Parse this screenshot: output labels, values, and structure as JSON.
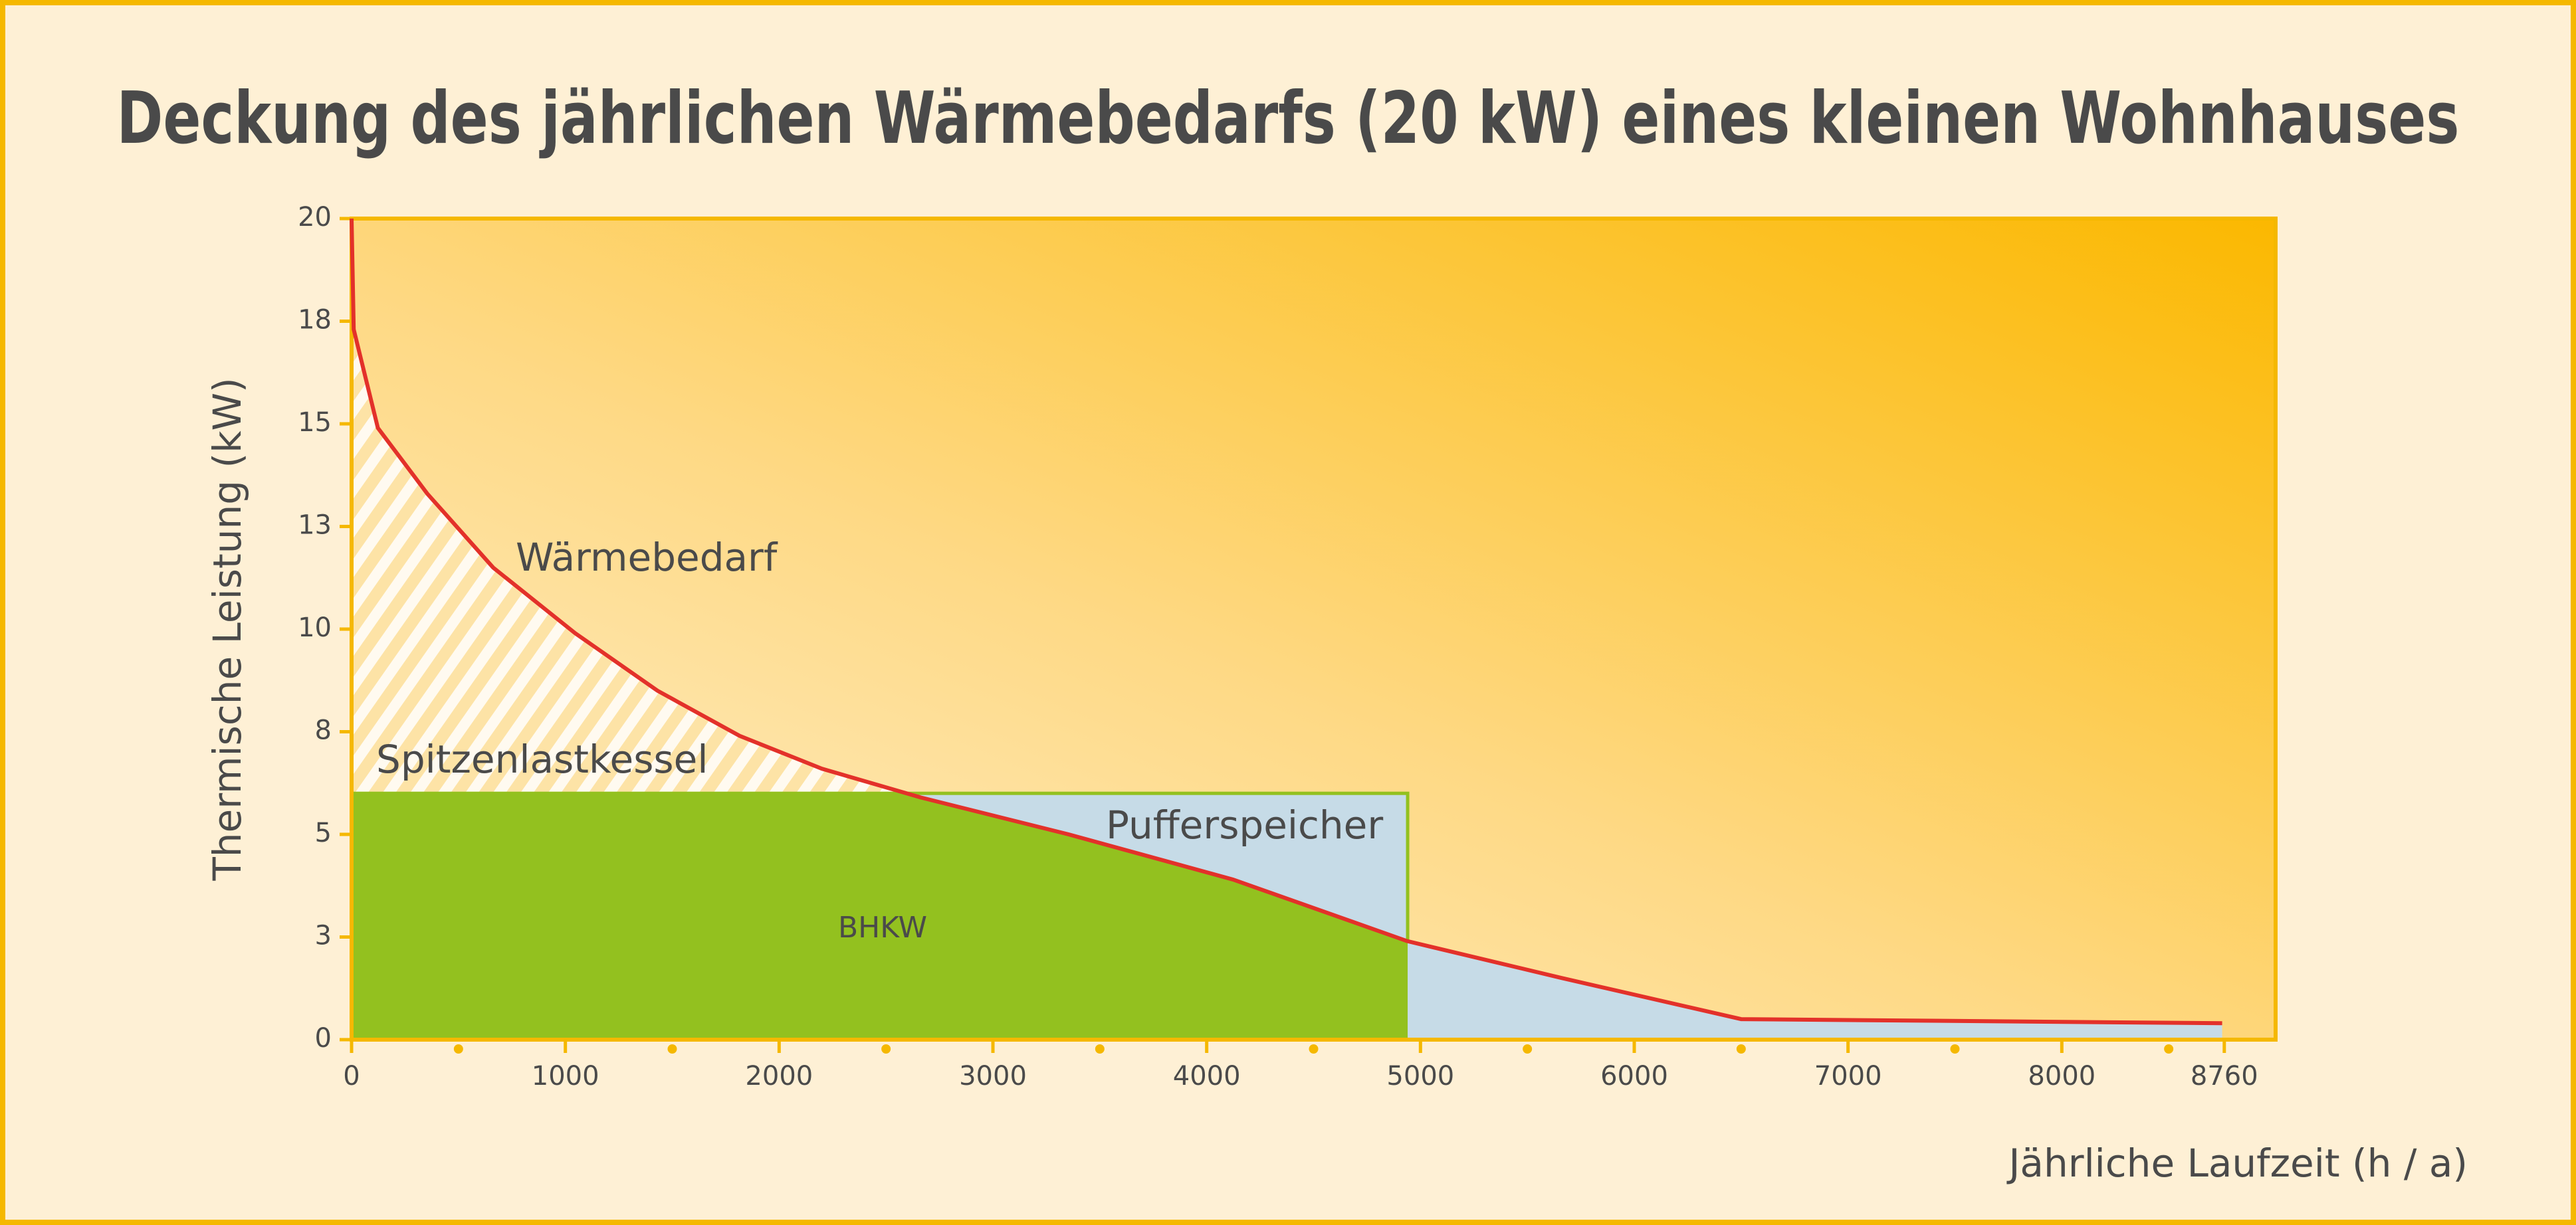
{
  "chart_data": {
    "type": "area",
    "title": "Deckung des jährlichen Wärmebedarfs (20 kW) eines kleinen Wohnhauses",
    "x_label": "Jährliche Laufzeit (h / a)",
    "y_label": "Thermische Leistung (kW)",
    "xlim": [
      0,
      9000
    ],
    "ylim": [
      0,
      20
    ],
    "xticks": [
      0,
      1000,
      2000,
      3000,
      4000,
      5000,
      6000,
      7000,
      8000,
      8760
    ],
    "xminorticks": [
      500,
      1500,
      2500,
      3500,
      4500,
      5500,
      6500,
      7500,
      8500
    ],
    "yticks": [
      0,
      {
        "value": 2.5,
        "label": "3"
      },
      5,
      {
        "value": 7.5,
        "label": "8"
      },
      10,
      {
        "value": 12.5,
        "label": "13"
      },
      15,
      {
        "value": 17.5,
        "label": "18"
      },
      20
    ],
    "series": [
      {
        "name": "Wärmebedarf",
        "color": "#e3312a",
        "x": [
          0,
          10,
          123,
          354,
          662,
          1046,
          1431,
          1815,
          2200,
          2662,
          3354,
          4123,
          4938,
          5662,
          6500,
          8750
        ],
        "values": [
          20,
          17.3,
          14.9,
          13.3,
          11.5,
          9.9,
          8.5,
          7.4,
          6.6,
          5.9,
          5.0,
          3.9,
          2.4,
          1.5,
          0.5,
          0.4
        ]
      }
    ],
    "bhkw": {
      "label": "BHKW",
      "color": "#93c11f",
      "x": [
        0,
        4940
      ],
      "value": 6
    },
    "storage": {
      "label": "Pufferspeicher",
      "color": "#c6dbe7"
    },
    "peak_boiler": {
      "label": "Spitzenlastkessel"
    }
  }
}
